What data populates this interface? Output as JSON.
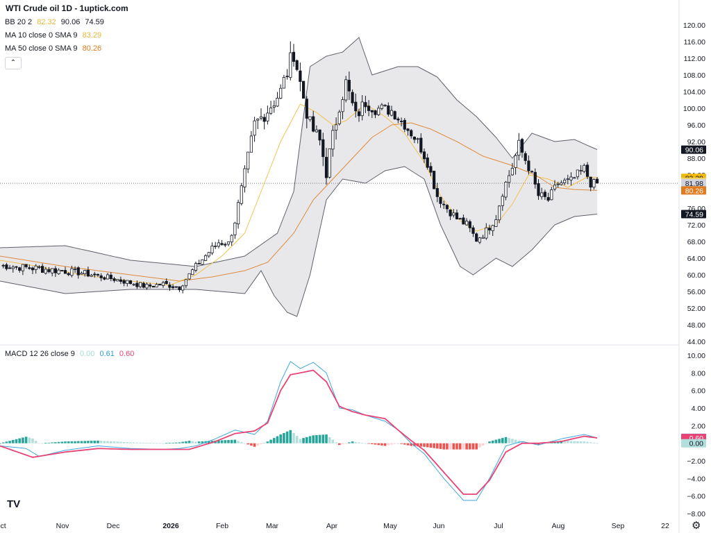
{
  "title": "WTI Crude oil  1D - 1uptick.com",
  "legend": {
    "bb": {
      "label": "BB 20 2",
      "values": [
        {
          "text": "82.32",
          "color": "#e8b63a"
        },
        {
          "text": "90.06",
          "color": "#131722"
        },
        {
          "text": "74.59",
          "color": "#131722"
        }
      ]
    },
    "ma10": {
      "label": "MA 10 close 0 SMA 9",
      "value": "83.29",
      "color": "#e8b63a"
    },
    "ma50": {
      "label": "MA 50 close 0 SMA 9",
      "value": "80.26",
      "color": "#e07b1f"
    },
    "macd": {
      "label": "MACD 12 26 close 9",
      "values": [
        {
          "text": "0.00",
          "color": "#a7dbd2"
        },
        {
          "text": "0.61",
          "color": "#2f9bd6"
        },
        {
          "text": "0.60",
          "color": "#e84374"
        }
      ]
    }
  },
  "icons": {
    "collapse": "chevron-up-icon",
    "logo": "tradingview-logo",
    "settings": "gear-icon"
  },
  "colors": {
    "up": "#ffffff",
    "down": "#131722",
    "bb_fill": "#e4e4e6",
    "ma10": "#f2c14e",
    "ma50": "#e08a3a",
    "macd_line": "#3ea6e0",
    "signal_line": "#e84374",
    "hist_pos": "#26a69a",
    "hist_pos_light": "#b2dfdb",
    "hist_neg": "#ef5350",
    "hist_neg_light": "#ffcdd2"
  },
  "chart_data": [
    {
      "type": "candlestick",
      "ylim": [
        44,
        120
      ],
      "price_ticks": [
        "120.00",
        "116.00",
        "112.00",
        "108.00",
        "104.00",
        "100.00",
        "96.00",
        "92.00",
        "88.00",
        "84.00",
        "80.00",
        "76.00",
        "72.00",
        "68.00",
        "64.00",
        "60.00",
        "56.00",
        "52.00",
        "48.00",
        "44.00"
      ],
      "x_ticks": [
        "Oct",
        "Nov",
        "Dec",
        "2026",
        "Feb",
        "Mar",
        "Apr",
        "May",
        "Jun",
        "Jul",
        "Aug",
        "Sep",
        "22"
      ],
      "price_labels": [
        {
          "text": "90.06",
          "value": 90.06,
          "bg": "#131722",
          "fg": "#ffffff"
        },
        {
          "text": "83.29",
          "value": 83.29,
          "bg": "#f0b90b",
          "fg": "#131722"
        },
        {
          "text": "82.32",
          "value": 82.32,
          "bg": "#f5d36b",
          "fg": "#131722"
        },
        {
          "text": "81.98",
          "value": 81.98,
          "bg": "#d1d4dc",
          "fg": "#131722"
        },
        {
          "text": "80.26",
          "value": 80.26,
          "bg": "#e07b1f",
          "fg": "#ffffff"
        },
        {
          "text": "74.59",
          "value": 74.59,
          "bg": "#131722",
          "fg": "#ffffff"
        }
      ],
      "last_close": 81.98,
      "anchors": [
        [
          0,
          62.2,
          1.0
        ],
        [
          12,
          61.5,
          1.3
        ],
        [
          25,
          60.5,
          1.0
        ],
        [
          35,
          59.0,
          0.9
        ],
        [
          45,
          57.2,
          0.9
        ],
        [
          50,
          57.8,
          0.9
        ],
        [
          55,
          57.0,
          0.9
        ],
        [
          60,
          62.0,
          1.0
        ],
        [
          64,
          65.5,
          1.2
        ],
        [
          67,
          67.8,
          1.2
        ],
        [
          70,
          67.5,
          1.1
        ],
        [
          72,
          73.0,
          1.5
        ],
        [
          75,
          84.0,
          2.0
        ],
        [
          78,
          96.0,
          2.5
        ],
        [
          82,
          99.5,
          2.3
        ],
        [
          86,
          104.0,
          2.7
        ],
        [
          89,
          111.0,
          3.2
        ],
        [
          90,
          114.0,
          3.5
        ],
        [
          92,
          106.0,
          3.0
        ],
        [
          95,
          96.0,
          2.5
        ],
        [
          98,
          92.0,
          2.5
        ],
        [
          100,
          85.0,
          2.8
        ],
        [
          104,
          101.0,
          2.5
        ],
        [
          106,
          106.0,
          2.6
        ],
        [
          109,
          98.0,
          2.3
        ],
        [
          112,
          101.5,
          2.2
        ],
        [
          115,
          100.0,
          2.0
        ],
        [
          120,
          99.5,
          1.8
        ],
        [
          124,
          96.0,
          1.5
        ],
        [
          128,
          92.0,
          1.5
        ],
        [
          131,
          87.0,
          1.5
        ],
        [
          134,
          79.0,
          1.5
        ],
        [
          137,
          76.0,
          1.3
        ],
        [
          140,
          73.5,
          1.3
        ],
        [
          143,
          72.0,
          1.3
        ],
        [
          146,
          68.5,
          1.2
        ],
        [
          149,
          70.5,
          1.3
        ],
        [
          152,
          74.0,
          1.5
        ],
        [
          154,
          80.0,
          1.5
        ],
        [
          157,
          86.0,
          2.0
        ],
        [
          159,
          91.0,
          2.0
        ],
        [
          162,
          86.0,
          1.7
        ],
        [
          165,
          79.0,
          1.6
        ],
        [
          168,
          78.0,
          1.5
        ],
        [
          171,
          82.0,
          1.4
        ],
        [
          175,
          82.5,
          1.5
        ],
        [
          179,
          85.5,
          1.5
        ],
        [
          181,
          82.0,
          1.4
        ],
        [
          183,
          81.98,
          1.0
        ]
      ],
      "bb_upper": [
        [
          0,
          66.5
        ],
        [
          20,
          67.0
        ],
        [
          40,
          63.5
        ],
        [
          60,
          62.0
        ],
        [
          75,
          64.5
        ],
        [
          85,
          70.0
        ],
        [
          90,
          80.0
        ],
        [
          95,
          110.0
        ],
        [
          100,
          112.5
        ],
        [
          105,
          113.5
        ],
        [
          110,
          117.0
        ],
        [
          114,
          108.0
        ],
        [
          122,
          110.0
        ],
        [
          128,
          110.0
        ],
        [
          134,
          107.5
        ],
        [
          140,
          102.0
        ],
        [
          146,
          98.0
        ],
        [
          152,
          93.0
        ],
        [
          157,
          88.0
        ],
        [
          163,
          94.0
        ],
        [
          170,
          92.0
        ],
        [
          176,
          92.5
        ],
        [
          183,
          90.06
        ]
      ],
      "bb_lower": [
        [
          0,
          58.5
        ],
        [
          20,
          55.5
        ],
        [
          40,
          56.5
        ],
        [
          60,
          56.5
        ],
        [
          75,
          55.5
        ],
        [
          80,
          61.0
        ],
        [
          84,
          55.0
        ],
        [
          88,
          51.0
        ],
        [
          91,
          50.0
        ],
        [
          95,
          60.0
        ],
        [
          100,
          78.0
        ],
        [
          105,
          83.0
        ],
        [
          112,
          82.0
        ],
        [
          118,
          85.0
        ],
        [
          124,
          86.0
        ],
        [
          130,
          83.0
        ],
        [
          135,
          72.0
        ],
        [
          141,
          62.0
        ],
        [
          145,
          60.0
        ],
        [
          152,
          64.0
        ],
        [
          157,
          62.0
        ],
        [
          163,
          66.0
        ],
        [
          170,
          72.0
        ],
        [
          176,
          74.0
        ],
        [
          183,
          74.59
        ]
      ],
      "ma10": [
        [
          0,
          63.5
        ],
        [
          12,
          62.0
        ],
        [
          25,
          60.0
        ],
        [
          40,
          58.5
        ],
        [
          52,
          57.5
        ],
        [
          60,
          60.0
        ],
        [
          68,
          64.5
        ],
        [
          75,
          70.0
        ],
        [
          80,
          80.0
        ],
        [
          86,
          92.0
        ],
        [
          92,
          101.0
        ],
        [
          97,
          99.0
        ],
        [
          102,
          96.0
        ],
        [
          106,
          97.0
        ],
        [
          112,
          101.0
        ],
        [
          118,
          98.0
        ],
        [
          124,
          94.0
        ],
        [
          130,
          87.0
        ],
        [
          135,
          79.0
        ],
        [
          141,
          73.0
        ],
        [
          146,
          70.5
        ],
        [
          152,
          72.0
        ],
        [
          157,
          77.0
        ],
        [
          162,
          84.0
        ],
        [
          168,
          83.0
        ],
        [
          174,
          81.0
        ],
        [
          180,
          83.5
        ],
        [
          183,
          83.29
        ]
      ],
      "ma50": [
        [
          0,
          64.5
        ],
        [
          20,
          62.0
        ],
        [
          40,
          60.0
        ],
        [
          55,
          58.5
        ],
        [
          65,
          59.5
        ],
        [
          75,
          61.0
        ],
        [
          82,
          63.0
        ],
        [
          90,
          70.0
        ],
        [
          96,
          78.0
        ],
        [
          102,
          83.0
        ],
        [
          108,
          88.0
        ],
        [
          114,
          93.0
        ],
        [
          120,
          96.0
        ],
        [
          126,
          96.5
        ],
        [
          132,
          95.0
        ],
        [
          140,
          92.0
        ],
        [
          148,
          88.5
        ],
        [
          156,
          86.5
        ],
        [
          164,
          84.0
        ],
        [
          170,
          81.0
        ],
        [
          176,
          80.5
        ],
        [
          183,
          80.26
        ]
      ]
    },
    {
      "type": "macd",
      "ylim": [
        -8,
        10
      ],
      "ticks": [
        "10.00",
        "8.00",
        "6.00",
        "4.00",
        "2.00",
        "0.00",
        "-2.00",
        "-4.00",
        "-6.00",
        "-8.00"
      ],
      "value_labels": [
        {
          "text": "0.61",
          "value": 0.61,
          "bg": "#2f9bd6",
          "fg": "#ffffff"
        },
        {
          "text": "0.60",
          "value": 0.6,
          "bg": "#e84374",
          "fg": "#ffffff"
        },
        {
          "text": "0.00",
          "value": 0.0,
          "bg": "#b2dfdb",
          "fg": "#131722"
        }
      ],
      "macd": [
        [
          0,
          -0.3
        ],
        [
          8,
          -0.6
        ],
        [
          12,
          -1.5
        ],
        [
          20,
          -0.8
        ],
        [
          30,
          -0.3
        ],
        [
          40,
          -0.6
        ],
        [
          50,
          -0.7
        ],
        [
          55,
          -0.6
        ],
        [
          60,
          -0.3
        ],
        [
          66,
          0.5
        ],
        [
          72,
          1.5
        ],
        [
          78,
          1.0
        ],
        [
          82,
          2.5
        ],
        [
          86,
          7.0
        ],
        [
          89,
          9.3
        ],
        [
          92,
          8.5
        ],
        [
          96,
          9.2
        ],
        [
          100,
          8.0
        ],
        [
          104,
          4.0
        ],
        [
          108,
          3.8
        ],
        [
          112,
          3.2
        ],
        [
          118,
          2.5
        ],
        [
          122,
          1.5
        ],
        [
          126,
          0.0
        ],
        [
          130,
          -1.2
        ],
        [
          136,
          -4.0
        ],
        [
          142,
          -6.5
        ],
        [
          146,
          -6.5
        ],
        [
          150,
          -4.0
        ],
        [
          155,
          -0.3
        ],
        [
          160,
          0.2
        ],
        [
          165,
          -0.2
        ],
        [
          172,
          0.5
        ],
        [
          179,
          1.0
        ],
        [
          183,
          0.61
        ]
      ],
      "signal": [
        [
          0,
          -0.3
        ],
        [
          10,
          -1.6
        ],
        [
          20,
          -1.0
        ],
        [
          30,
          -0.6
        ],
        [
          40,
          -0.7
        ],
        [
          50,
          -0.7
        ],
        [
          58,
          -0.7
        ],
        [
          66,
          0.2
        ],
        [
          72,
          1.1
        ],
        [
          78,
          1.4
        ],
        [
          82,
          2.3
        ],
        [
          86,
          6.0
        ],
        [
          89,
          7.8
        ],
        [
          92,
          8.0
        ],
        [
          96,
          8.3
        ],
        [
          100,
          7.0
        ],
        [
          104,
          4.2
        ],
        [
          108,
          3.6
        ],
        [
          112,
          3.2
        ],
        [
          118,
          2.8
        ],
        [
          122,
          1.5
        ],
        [
          126,
          0.3
        ],
        [
          130,
          -0.8
        ],
        [
          136,
          -3.3
        ],
        [
          142,
          -5.8
        ],
        [
          146,
          -5.8
        ],
        [
          150,
          -4.2
        ],
        [
          155,
          -1.0
        ],
        [
          160,
          0.0
        ],
        [
          165,
          0.0
        ],
        [
          172,
          0.2
        ],
        [
          179,
          0.8
        ],
        [
          183,
          0.6
        ]
      ]
    }
  ]
}
